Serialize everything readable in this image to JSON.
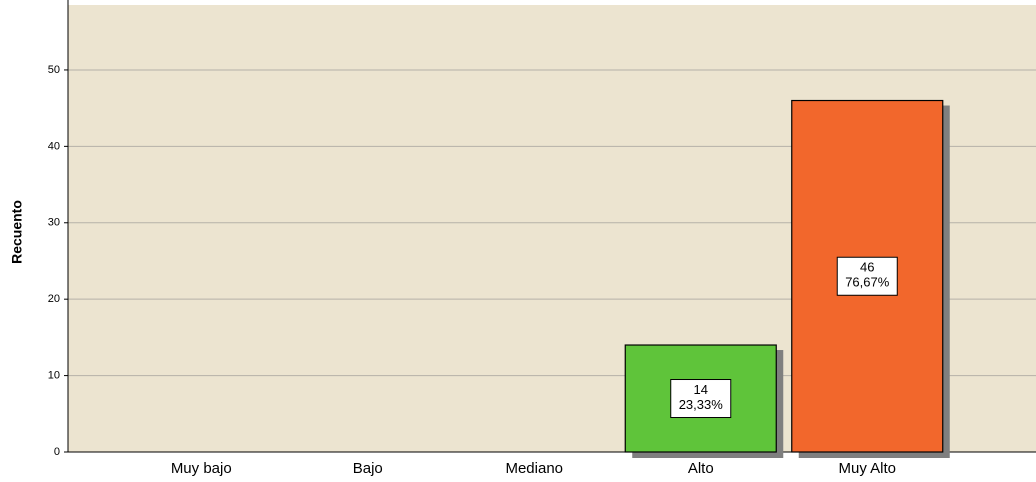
{
  "chart_data": {
    "type": "bar",
    "y_label": "Recuento",
    "categories": [
      "Muy bajo",
      "Bajo",
      "Mediano",
      "Alto",
      "Muy Alto"
    ],
    "values": [
      0,
      0,
      0,
      14,
      46
    ],
    "percent_labels": [
      null,
      null,
      null,
      "23,33%",
      "76,67%"
    ],
    "colors": [
      null,
      null,
      null,
      "#5fc43a",
      "#f2672c"
    ],
    "ylim": [
      0,
      58.5
    ],
    "yticks": [
      0,
      10,
      20,
      30,
      40,
      50
    ],
    "grid": true
  }
}
